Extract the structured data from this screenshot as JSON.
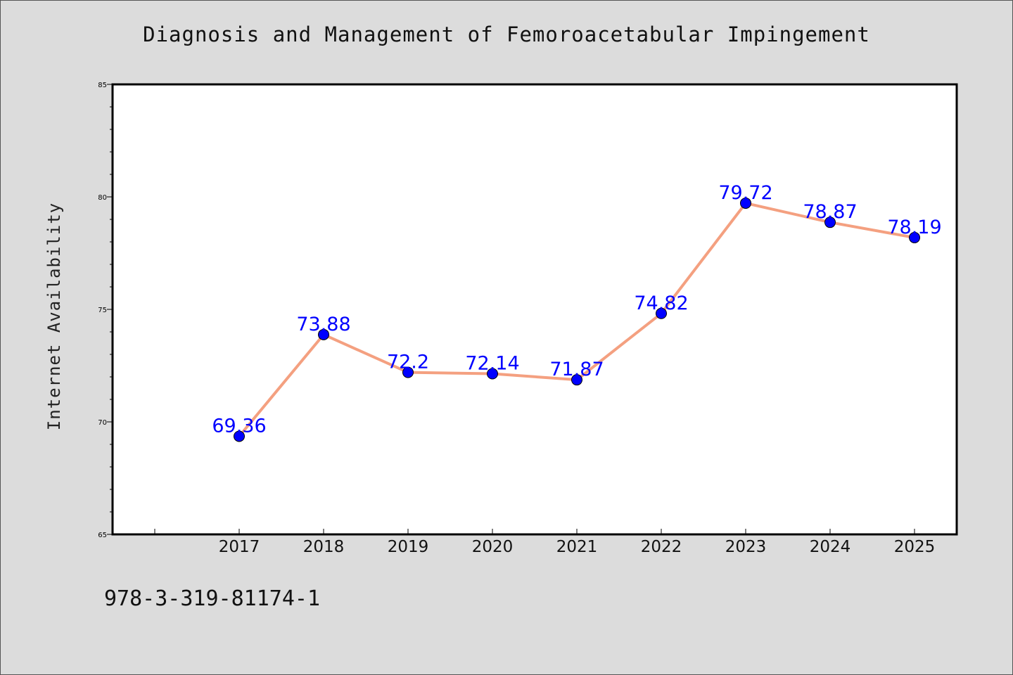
{
  "chart_data": {
    "type": "line",
    "title": "Diagnosis and Management of Femoroacetabular Impingement",
    "xlabel": "",
    "ylabel": "Internet Availability",
    "categories": [
      "2017",
      "2018",
      "2019",
      "2020",
      "2021",
      "2022",
      "2023",
      "2024",
      "2025"
    ],
    "series": [
      {
        "values": [
          69.36,
          73.88,
          72.2,
          72.14,
          71.87,
          74.82,
          79.72,
          78.87,
          78.19
        ]
      }
    ],
    "data_labels": [
      "69.36",
      "73.88",
      "72.2",
      "72.14",
      "71.87",
      "74.82",
      "79.72",
      "78.87",
      "78.19"
    ],
    "ylim": [
      65,
      85
    ],
    "yticks": [
      65,
      70,
      75,
      80,
      85
    ],
    "grid": false,
    "colors": {
      "line": "#f4a080",
      "marker": "#0000ff",
      "label": "#0000ff",
      "background": "#dcdcdc",
      "plot": "#ffffff"
    }
  },
  "footer_text": "978-3-319-81174-1"
}
